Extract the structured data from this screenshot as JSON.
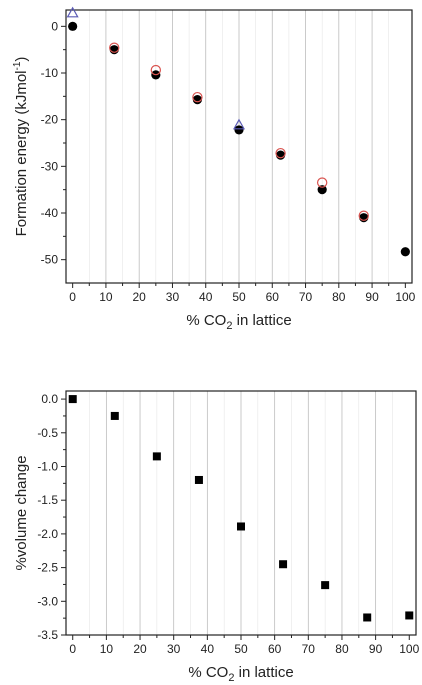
{
  "chart_data": [
    {
      "type": "scatter",
      "xlabel": "% CO",
      "xlabel_sub": "2",
      "xlabel_tail": " in lattice",
      "ylabel": "Formation energy (kJmol",
      "ylabel_sup": "-1",
      "ylabel_tail": ")",
      "xlim": [
        -2,
        102
      ],
      "ylim": [
        -55,
        3.5
      ],
      "xticks": [
        0,
        10,
        20,
        30,
        40,
        50,
        60,
        70,
        80,
        90,
        100
      ],
      "yticks": [
        0,
        -10,
        -20,
        -30,
        -40,
        -50
      ],
      "grid": "vertical",
      "series": [
        {
          "marker": "filled-circle",
          "color": "#000000",
          "points": [
            [
              0,
              0
            ],
            [
              12.5,
              -5.0
            ],
            [
              25,
              -10.4
            ],
            [
              37.5,
              -15.7
            ],
            [
              50,
              -22.2
            ],
            [
              62.5,
              -27.6
            ],
            [
              75,
              -35.0
            ],
            [
              87.5,
              -41.0
            ],
            [
              100,
              -48.3
            ]
          ]
        },
        {
          "marker": "open-circle",
          "color": "#d9534f",
          "points": [
            [
              12.5,
              -4.9
            ],
            [
              25,
              -9.7
            ],
            [
              37.5,
              -15.5
            ],
            [
              62.5,
              -27.5
            ],
            [
              75,
              -33.8
            ],
            [
              87.5,
              -40.9
            ]
          ]
        },
        {
          "marker": "open-triangle",
          "color": "#5b5bb5",
          "points": [
            [
              0,
              3.0
            ],
            [
              50,
              -21.0
            ]
          ]
        }
      ]
    },
    {
      "type": "scatter",
      "xlabel": "% CO",
      "xlabel_sub": "2",
      "xlabel_tail": " in lattice",
      "ylabel": "%volume change",
      "xlim": [
        -2,
        102
      ],
      "ylim": [
        -3.5,
        0.12
      ],
      "xticks": [
        0,
        10,
        20,
        30,
        40,
        50,
        60,
        70,
        80,
        90,
        100
      ],
      "yticks": [
        0.0,
        -0.5,
        -1.0,
        -1.5,
        -2.0,
        -2.5,
        -3.0,
        -3.5
      ],
      "ytick_labels": [
        "0.0",
        "-0.5",
        "-1.0",
        "-1.5",
        "-2.0",
        "-2.5",
        "-3.0",
        "-3.5"
      ],
      "grid": "vertical",
      "series": [
        {
          "marker": "filled-square",
          "color": "#000000",
          "points": [
            [
              0,
              0.0
            ],
            [
              12.5,
              -0.25
            ],
            [
              25,
              -0.85
            ],
            [
              37.5,
              -1.2
            ],
            [
              50,
              -1.89
            ],
            [
              62.5,
              -2.45
            ],
            [
              75,
              -2.76
            ],
            [
              87.5,
              -3.24
            ],
            [
              100,
              -3.21
            ]
          ]
        }
      ]
    }
  ]
}
